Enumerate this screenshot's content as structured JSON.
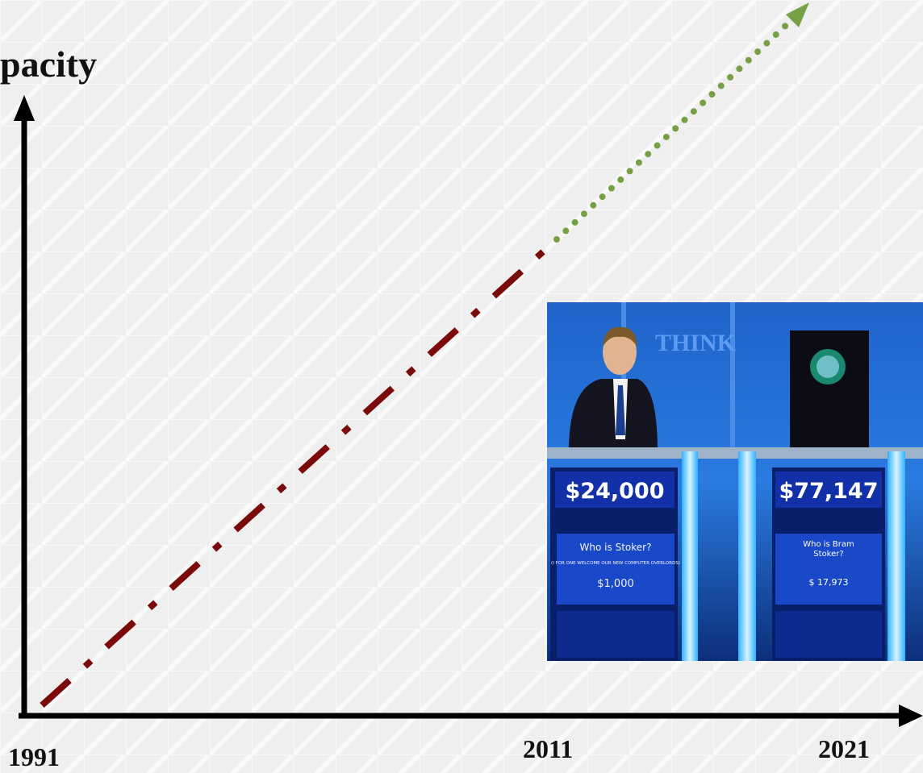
{
  "axis_label": "pacity",
  "x_labels": [
    "1991",
    "2011",
    "2021"
  ],
  "photo": {
    "backdrop_text": "THINK",
    "podiums": [
      {
        "score": "$24,000",
        "answer": "Who is Stoker?",
        "note": "(I FOR ONE WELCOME OUR NEW COMPUTER OVERLORDS)",
        "wager": "$1,000"
      },
      {
        "score": "$77,147",
        "answer": "Who is Bram Stoker?",
        "wager": "$ 17,973"
      }
    ]
  }
}
